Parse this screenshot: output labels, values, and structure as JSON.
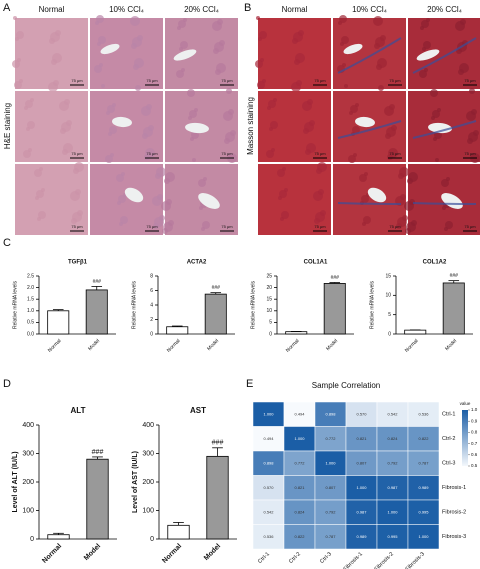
{
  "figure": {
    "panels": [
      "A",
      "B",
      "C",
      "D",
      "E"
    ],
    "histology": [
      {
        "row_label": "H&E staining",
        "columns": [
          "Normal",
          "10% CCl₄",
          "20% CCl₄"
        ],
        "scale_bar": "75 μm"
      },
      {
        "row_label": "Masson staining",
        "columns": [
          "Normal",
          "10% CCl₄",
          "20% CCl₄"
        ],
        "scale_bar": "75 μm"
      }
    ]
  },
  "chart_data": [
    {
      "type": "bar",
      "title": "TGFβ1",
      "y_label": "Relative mRNA levels",
      "categories": [
        "Normal",
        "Model"
      ],
      "values": [
        1.0,
        1.9
      ],
      "errors": [
        0.05,
        0.15
      ],
      "colors": [
        "#ffffff",
        "#999999"
      ],
      "ylim": [
        0,
        2.5
      ],
      "yticks": [
        {
          "value": 0,
          "label": "0.0"
        },
        {
          "value": 0.5,
          "label": "0.5"
        },
        {
          "value": 1,
          "label": "1.0"
        },
        {
          "value": 1.5,
          "label": "1.5"
        },
        {
          "value": 2,
          "label": "2.0"
        },
        {
          "value": 2.5,
          "label": "2.5"
        }
      ],
      "annotation": "###"
    },
    {
      "type": "bar",
      "title": "ACTA2",
      "y_label": "Relative mRNA levels",
      "categories": [
        "Normal",
        "Model"
      ],
      "values": [
        1.0,
        5.5
      ],
      "errors": [
        0.1,
        0.2
      ],
      "colors": [
        "#ffffff",
        "#999999"
      ],
      "ylim": [
        0,
        8
      ],
      "yticks": [
        0,
        2,
        4,
        6,
        8
      ],
      "annotation": "###"
    },
    {
      "type": "bar",
      "title": "COL1A1",
      "y_label": "Relative mRNA levels",
      "categories": [
        "Normal",
        "Model"
      ],
      "values": [
        1.0,
        21.8
      ],
      "errors": [
        0.1,
        0.4
      ],
      "colors": [
        "#ffffff",
        "#999999"
      ],
      "ylim": [
        0,
        25
      ],
      "yticks": [
        0,
        5,
        10,
        15,
        20,
        25
      ],
      "annotation": "###"
    },
    {
      "type": "bar",
      "title": "COL1A2",
      "y_label": "Relative mRNA levels",
      "categories": [
        "Normal",
        "Model"
      ],
      "values": [
        1.0,
        13.2
      ],
      "errors": [
        0.05,
        0.6
      ],
      "colors": [
        "#ffffff",
        "#999999"
      ],
      "ylim": [
        0,
        15
      ],
      "yticks": [
        0,
        5,
        10,
        15
      ],
      "annotation": "###"
    },
    {
      "type": "bar",
      "title": "ALT",
      "y_label": "Level of ALT (IU/L)",
      "categories": [
        "Normal",
        "Model"
      ],
      "values": [
        15,
        280
      ],
      "errors": [
        5,
        8
      ],
      "colors": [
        "#ffffff",
        "#999999"
      ],
      "ylim": [
        0,
        400
      ],
      "yticks": [
        0,
        100,
        200,
        300,
        400
      ],
      "annotation": "###"
    },
    {
      "type": "bar",
      "title": "AST",
      "y_label": "Level of AST (IU/L)",
      "categories": [
        "Normal",
        "Model"
      ],
      "values": [
        48,
        290
      ],
      "errors": [
        10,
        30
      ],
      "colors": [
        "#ffffff",
        "#999999"
      ],
      "ylim": [
        0,
        400
      ],
      "yticks": [
        0,
        100,
        200,
        300,
        400
      ],
      "annotation": "###"
    },
    {
      "type": "heatmap",
      "title": "Sample Correlation",
      "x_categories": [
        "Ctrl-1",
        "Ctrl-2",
        "Ctrl-3",
        "Fibrosis-1",
        "Fibrosis-2",
        "Fibrosis-3"
      ],
      "y_categories": [
        "Ctrl-1",
        "Ctrl-2",
        "Ctrl-3",
        "Fibrosis-1",
        "Fibrosis-2",
        "Fibrosis-3"
      ],
      "values": [
        [
          1,
          0.494,
          0.898,
          0.57,
          0.542,
          0.536
        ],
        [
          0.494,
          1,
          0.772,
          0.821,
          0.824,
          0.822
        ],
        [
          0.898,
          0.772,
          1,
          0.807,
          0.792,
          0.787
        ],
        [
          0.57,
          0.821,
          0.807,
          1,
          0.987,
          0.989
        ],
        [
          0.542,
          0.824,
          0.792,
          0.987,
          1,
          0.995
        ],
        [
          0.536,
          0.822,
          0.787,
          0.989,
          0.995,
          1
        ]
      ],
      "value_labels": [
        [
          "1.000",
          "0.494",
          "0.898",
          "0.570",
          "0.542",
          "0.536"
        ],
        [
          "0.494",
          "1.000",
          "0.772",
          "0.821",
          "0.824",
          "0.822"
        ],
        [
          "0.898",
          "0.772",
          "1.000",
          "0.807",
          "0.792",
          "0.787"
        ],
        [
          "0.570",
          "0.821",
          "0.807",
          "1.000",
          "0.987",
          "0.989"
        ],
        [
          "0.542",
          "0.824",
          "0.792",
          "0.987",
          "1.000",
          "0.995"
        ],
        [
          "0.536",
          "0.822",
          "0.787",
          "0.989",
          "0.995",
          "1.000"
        ]
      ],
      "colorbar_label": "value",
      "clim": [
        0.5,
        1
      ],
      "cmap": [
        "#f4f8fc",
        "#1b5ea6"
      ],
      "cticks": [
        0.5,
        0.6,
        0.7,
        0.8,
        0.9,
        {
          "value": 1,
          "label": "1.0"
        }
      ]
    }
  ]
}
